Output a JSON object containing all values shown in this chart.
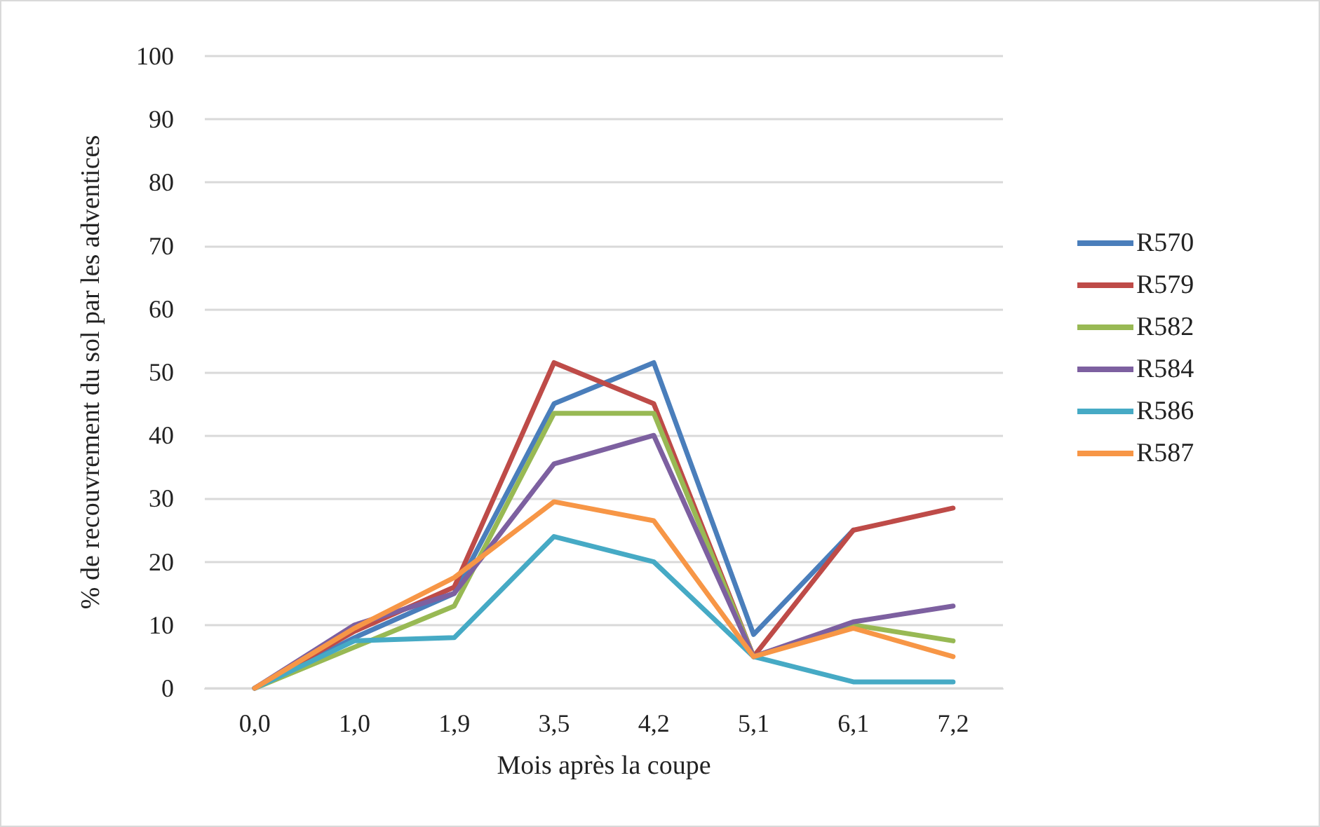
{
  "chart_data": {
    "type": "line",
    "xlabel": "Mois après la coupe",
    "ylabel": "% de recouvrement du sol par les adventices",
    "categories": [
      "0,0",
      "1,0",
      "1,9",
      "3,5",
      "4,2",
      "5,1",
      "6,1",
      "7,2"
    ],
    "series": [
      {
        "name": "R570",
        "color": "#4a7ebb",
        "values": [
          0,
          8,
          15,
          45,
          51.5,
          8.5,
          25,
          null
        ]
      },
      {
        "name": "R579",
        "color": "#be4b48",
        "values": [
          0,
          9,
          16,
          51.5,
          45,
          5,
          25,
          28.5
        ]
      },
      {
        "name": "R582",
        "color": "#98b954",
        "values": [
          0,
          6.5,
          13,
          43.5,
          43.5,
          5,
          10,
          7.5
        ]
      },
      {
        "name": "R584",
        "color": "#7d60a0",
        "values": [
          0,
          10,
          15,
          35.5,
          40,
          5,
          10.5,
          13
        ]
      },
      {
        "name": "R586",
        "color": "#46aac5",
        "values": [
          0,
          7.5,
          8,
          24,
          20,
          5,
          1,
          1
        ]
      },
      {
        "name": "R587",
        "color": "#f79646",
        "values": [
          0,
          9.5,
          17.5,
          29.5,
          26.5,
          5,
          9.5,
          5
        ]
      }
    ],
    "ylim": [
      0,
      100
    ],
    "yticks": [
      0,
      10,
      20,
      30,
      40,
      50,
      60,
      70,
      80,
      90,
      100
    ],
    "grid": "y",
    "legend": "right",
    "marker": "none",
    "line_style": "solid"
  }
}
